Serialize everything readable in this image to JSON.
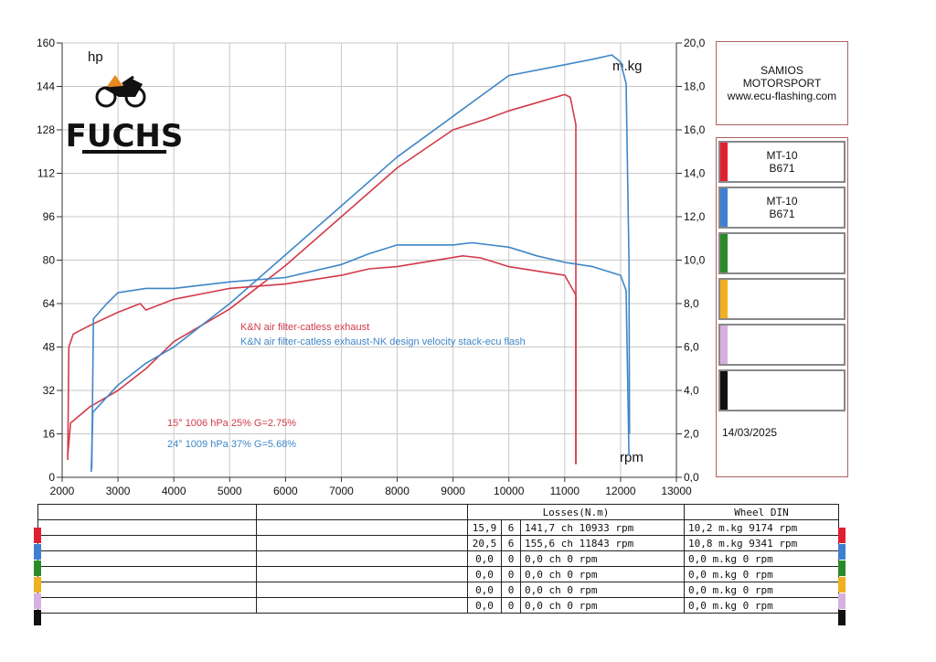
{
  "brand": {
    "line1": "SAMIOS",
    "line2": "MOTORSPORT",
    "line3": "www.ecu-flashing.com"
  },
  "logo_text": "FUCHS",
  "date": "14/03/2025",
  "chart_data": {
    "type": "line",
    "x_axis": {
      "label": "rpm",
      "min": 2000,
      "max": 13000,
      "ticks": [
        2000,
        3000,
        4000,
        5000,
        6000,
        7000,
        8000,
        9000,
        10000,
        11000,
        12000,
        13000
      ]
    },
    "y_left": {
      "label": "hp",
      "min": 0,
      "max": 160,
      "ticks": [
        0,
        16,
        32,
        48,
        64,
        80,
        96,
        112,
        128,
        144,
        160
      ]
    },
    "y_right": {
      "label": "m.kg",
      "min": 0,
      "max": 20,
      "ticks": [
        "0,0",
        "2,0",
        "4,0",
        "6,0",
        "8,0",
        "10,0",
        "12,0",
        "14,0",
        "16,0",
        "18,0",
        "20,0"
      ]
    },
    "grid": true,
    "annotations": {
      "red_label": "K&N air filter-catless exhaust",
      "blue_label": "K&N air filter-catless exhaust-NK design velocity stack-ecu flash",
      "red_conditions": "15°  1006 hPa  25%    G=2.75%",
      "blue_conditions": "24°  1009 hPa  37%    G=5.68%"
    },
    "series": [
      {
        "name": "K&N air filter-catless exhaust",
        "color": "#d23a4a",
        "kind": "power",
        "x": [
          2100,
          2150,
          2500,
          3000,
          3500,
          4000,
          5000,
          6000,
          7000,
          8000,
          9000,
          9600,
          10000,
          10500,
          11000,
          11100,
          11200,
          11200
        ],
        "y": [
          8,
          20,
          26,
          32,
          40,
          50,
          62,
          78,
          96,
          114,
          128,
          132,
          135,
          138,
          141,
          140,
          130,
          5
        ]
      },
      {
        "name": "K&N air filter-catless exhaust-NK design velocity stack-ecu flash",
        "color": "#3f86c8",
        "kind": "power",
        "x": [
          2520,
          2550,
          3000,
          3500,
          4000,
          5000,
          6000,
          7000,
          8000,
          9000,
          10000,
          11000,
          11500,
          11843,
          12000,
          12100,
          12150,
          12160
        ],
        "y": [
          2,
          24,
          34,
          42,
          48,
          64,
          82,
          100,
          118,
          133,
          148,
          152,
          154,
          155.6,
          153,
          145,
          80,
          16
        ]
      },
      {
        "name": "K&N air filter-catless exhaust",
        "color": "#d23a4a",
        "kind": "torque",
        "x": [
          2100,
          2120,
          2200,
          2500,
          3000,
          3400,
          3500,
          4000,
          5000,
          6000,
          7000,
          7500,
          8000,
          9174,
          9500,
          10000,
          10500,
          11000,
          11200,
          11200
        ],
        "y": [
          0.8,
          6.0,
          6.6,
          7.0,
          7.6,
          8.0,
          7.7,
          8.2,
          8.7,
          8.9,
          9.3,
          9.6,
          9.7,
          10.2,
          10.1,
          9.7,
          9.5,
          9.3,
          8.4,
          0.6
        ]
      },
      {
        "name": "K&N air filter-catless exhaust-NK design velocity stack-ecu flash",
        "color": "#3f86c8",
        "kind": "torque",
        "x": [
          2530,
          2560,
          2800,
          3000,
          3500,
          4000,
          5000,
          6000,
          7000,
          7500,
          8000,
          9000,
          9341,
          10000,
          10500,
          11000,
          11500,
          12000,
          12100,
          12150
        ],
        "y": [
          0.4,
          7.3,
          8.0,
          8.5,
          8.7,
          8.7,
          9.0,
          9.2,
          9.8,
          10.3,
          10.7,
          10.7,
          10.8,
          10.6,
          10.2,
          9.9,
          9.7,
          9.3,
          8.6,
          1.0
        ]
      }
    ]
  },
  "legend": [
    {
      "line1": "MT-10",
      "line2": "B671",
      "color": "#e02030"
    },
    {
      "line1": "MT-10",
      "line2": "B671",
      "color": "#3f7fd0"
    },
    {
      "line1": "",
      "line2": "",
      "color": "#2a8a2a"
    },
    {
      "line1": "",
      "line2": "",
      "color": "#f0b020"
    },
    {
      "line1": "",
      "line2": "",
      "color": "#d6b0e0"
    },
    {
      "line1": "",
      "line2": "",
      "color": "#111111"
    }
  ],
  "table": {
    "header_losses": "Losses(N.m)",
    "header_wheel": "Wheel DIN",
    "rows": [
      {
        "loss": "15,9",
        "n": "6",
        "power": "141,7 ch 10933 rpm",
        "torque": "10,2 m.kg 9174 rpm",
        "color": "#e02030"
      },
      {
        "loss": "20,5",
        "n": "6",
        "power": "155,6 ch 11843 rpm",
        "torque": "10,8 m.kg 9341 rpm",
        "color": "#3f7fd0"
      },
      {
        "loss": "0,0",
        "n": "0",
        "power": "0,0 ch 0 rpm",
        "torque": "0,0 m.kg 0 rpm",
        "color": "#2a8a2a"
      },
      {
        "loss": "0,0",
        "n": "0",
        "power": "0,0 ch 0 rpm",
        "torque": "0,0 m.kg 0 rpm",
        "color": "#f0b020"
      },
      {
        "loss": "0,0",
        "n": "0",
        "power": "0,0 ch 0 rpm",
        "torque": "0,0 m.kg 0 rpm",
        "color": "#d6b0e0"
      },
      {
        "loss": "0,0",
        "n": "0",
        "power": "0,0 ch 0 rpm",
        "torque": "0,0 m.kg 0 rpm",
        "color": "#111111"
      }
    ]
  }
}
